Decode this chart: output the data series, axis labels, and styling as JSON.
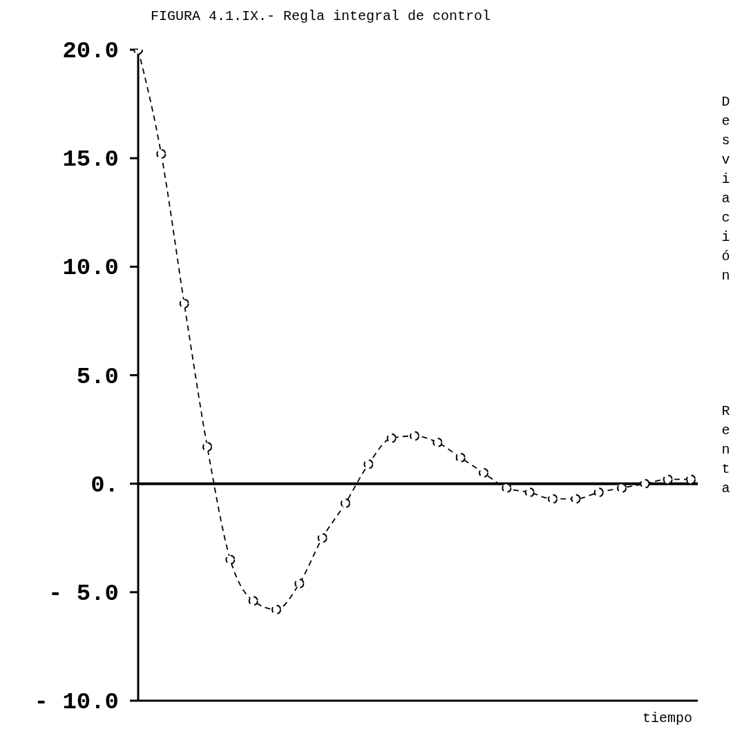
{
  "chart_data": {
    "type": "line",
    "title": "FIGURA 4.1.IX.- Regla integral de control",
    "xlabel": "tiempo",
    "ylabel": "Desviación Renta",
    "categories": [
      null,
      null,
      null,
      null,
      null,
      null,
      null,
      null,
      null,
      null,
      null,
      null,
      null,
      null,
      null,
      null,
      null,
      null,
      null,
      null,
      null,
      null,
      null,
      null,
      null
    ],
    "series": [
      {
        "color": "#000000",
        "values": [
          20,
          15.2,
          8.3,
          1.7,
          -3.5,
          -5.4,
          -5.8,
          -4.6,
          -2.5,
          -0.9,
          0.9,
          2.1,
          2.2,
          1.9,
          1.2,
          0.5,
          -0.2,
          -0.4,
          -0.7,
          -0.7,
          -0.4,
          -0.2,
          0.0,
          0.2,
          0.2
        ]
      }
    ],
    "ylim": [
      -10,
      20
    ],
    "yticks": [
      {
        "value": 20,
        "label": "20.0"
      },
      {
        "value": 15,
        "label": "15.0"
      },
      {
        "value": 10,
        "label": "10.0"
      },
      {
        "value": 5,
        "label": "5.0"
      },
      {
        "value": 0,
        "label": "0."
      },
      {
        "value": -5,
        "label": "- 5.0"
      },
      {
        "value": -10,
        "label": "- 10.0"
      }
    ],
    "ref_lines": [
      {
        "axis": "y",
        "value": 0,
        "color": "#000000"
      }
    ],
    "grid": false,
    "legend": false,
    "marker": "circle",
    "line_style": "dashed"
  }
}
